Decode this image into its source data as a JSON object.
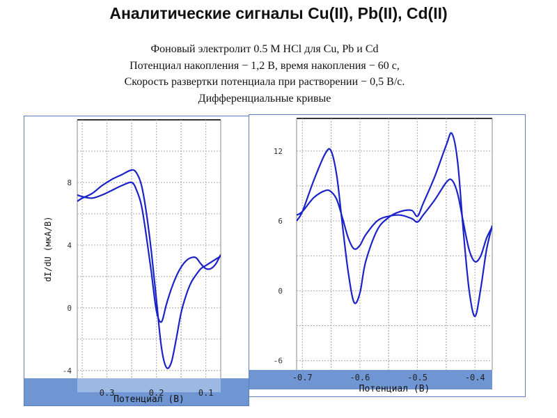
{
  "title": "Аналитические сигналы Cu(II), Pb(II), Cd(II)",
  "subtitle_lines": [
    "Фоновый электролит 0.5 М HCl для Cu, Pb и Cd",
    "Потенциал накопления  − 1,2 В, время накопления − 60 с,",
    "Скорость развертки потенциала при растворении  − 0,5 В/с.",
    "Дифференциальные кривые"
  ],
  "colors": {
    "curve": "#1a22c8",
    "axis_band": "#6f96d2",
    "grid": "#aaaaaa",
    "frame": "#5b7fc1"
  },
  "chart_data": [
    {
      "type": "line",
      "xlabel": "Потенциал (В)",
      "ylabel": "dI/dU (мкА/В)",
      "xlim": [
        0.36,
        0.07
      ],
      "ylim": [
        -4.5,
        12
      ],
      "xticks": [
        0.3,
        0.2,
        0.1
      ],
      "xtick_labels": [
        "0.3",
        "0.2",
        "0.1"
      ],
      "yticks": [
        8,
        4,
        0,
        -4
      ],
      "ytick_labels": [
        "8",
        "4",
        "0",
        "-4"
      ],
      "grid": true,
      "series": [
        {
          "x": [
            0.36,
            0.35,
            0.33,
            0.31,
            0.29,
            0.27,
            0.25,
            0.24,
            0.23,
            0.22,
            0.21,
            0.2,
            0.19,
            0.18,
            0.17,
            0.16,
            0.15,
            0.14,
            0.13,
            0.12,
            0.11,
            0.1,
            0.09,
            0.08,
            0.07
          ],
          "y": [
            6.8,
            7.0,
            7.3,
            7.8,
            8.2,
            8.5,
            8.8,
            8.6,
            7.8,
            6.0,
            3.5,
            0.5,
            -2.5,
            -3.8,
            -3.5,
            -2.0,
            -0.3,
            0.8,
            1.6,
            2.1,
            2.5,
            2.7,
            2.9,
            3.1,
            3.3
          ]
        },
        {
          "x": [
            0.36,
            0.35,
            0.33,
            0.31,
            0.29,
            0.27,
            0.25,
            0.24,
            0.23,
            0.22,
            0.21,
            0.2,
            0.19,
            0.18,
            0.17,
            0.16,
            0.15,
            0.14,
            0.13,
            0.12,
            0.11,
            0.1,
            0.09,
            0.08,
            0.07
          ],
          "y": [
            7.2,
            7.1,
            7.0,
            7.2,
            7.5,
            7.8,
            8.0,
            7.5,
            6.5,
            4.5,
            2.2,
            -0.2,
            -0.9,
            0.2,
            1.2,
            2.0,
            2.6,
            3.0,
            3.2,
            3.2,
            2.8,
            2.5,
            2.5,
            2.8,
            3.4
          ]
        }
      ]
    },
    {
      "type": "line",
      "xlabel": "Потенциал (В)",
      "ylabel": "",
      "xlim": [
        -0.71,
        -0.37
      ],
      "ylim": [
        -6.8,
        14.8
      ],
      "xticks": [
        -0.7,
        -0.6,
        -0.5,
        -0.4
      ],
      "xtick_labels": [
        "-0.7",
        "-0.6",
        "-0.5",
        "-0.4"
      ],
      "yticks": [
        12,
        6,
        0,
        -6
      ],
      "ytick_labels": [
        "12",
        "6",
        "0",
        "-6"
      ],
      "grid": true,
      "series": [
        {
          "x": [
            -0.71,
            -0.7,
            -0.68,
            -0.66,
            -0.65,
            -0.64,
            -0.63,
            -0.62,
            -0.61,
            -0.6,
            -0.59,
            -0.57,
            -0.55,
            -0.53,
            -0.51,
            -0.5,
            -0.49,
            -0.47,
            -0.45,
            -0.44,
            -0.43,
            -0.42,
            -0.41,
            -0.4,
            -0.39,
            -0.38,
            -0.37
          ],
          "y": [
            6.0,
            6.8,
            9.5,
            11.8,
            12.0,
            9.8,
            5.5,
            1.5,
            -1.0,
            -0.2,
            2.5,
            5.2,
            6.3,
            6.8,
            6.9,
            6.4,
            7.5,
            9.8,
            12.5,
            13.5,
            11.0,
            5.0,
            0.0,
            -2.2,
            0.2,
            3.5,
            5.6
          ]
        },
        {
          "x": [
            -0.71,
            -0.7,
            -0.68,
            -0.66,
            -0.65,
            -0.64,
            -0.63,
            -0.62,
            -0.61,
            -0.6,
            -0.59,
            -0.57,
            -0.55,
            -0.53,
            -0.51,
            -0.5,
            -0.49,
            -0.47,
            -0.45,
            -0.44,
            -0.43,
            -0.42,
            -0.41,
            -0.4,
            -0.39,
            -0.38,
            -0.37
          ],
          "y": [
            6.5,
            6.8,
            8.0,
            8.6,
            8.5,
            7.8,
            6.2,
            4.5,
            3.6,
            3.9,
            4.8,
            6.0,
            6.4,
            6.5,
            6.2,
            5.9,
            6.5,
            7.8,
            9.3,
            9.5,
            8.3,
            5.8,
            3.5,
            2.5,
            3.0,
            4.5,
            5.5
          ]
        }
      ]
    }
  ]
}
